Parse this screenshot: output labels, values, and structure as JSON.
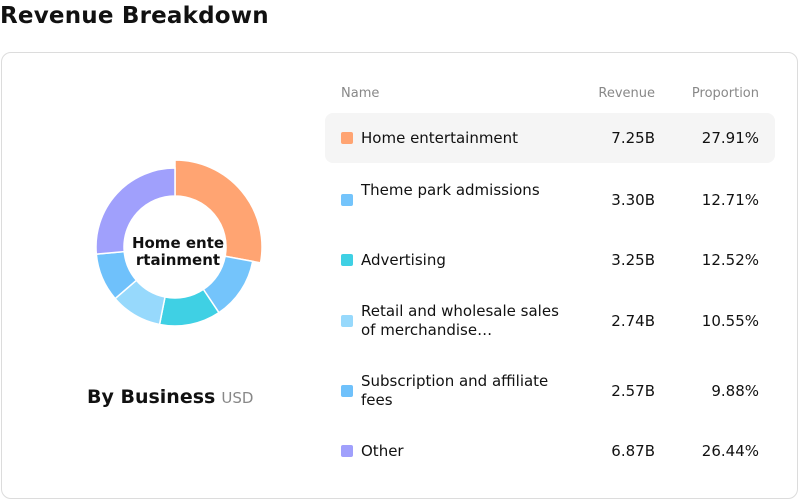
{
  "page": {
    "title": "Revenue Breakdown"
  },
  "chart_data": {
    "type": "pie",
    "title": "By Business",
    "unit": "USD",
    "center_label": "Home entertainment",
    "columns": {
      "name": "Name",
      "revenue": "Revenue",
      "proportion": "Proportion"
    },
    "categories": [
      "Home entertainment",
      "Theme park admissions",
      "Advertising",
      "Retail and wholesale sales of merchandise…",
      "Subscription and affiliate fees",
      "Other"
    ],
    "revenue_labels": [
      "7.25B",
      "3.30B",
      "3.25B",
      "2.74B",
      "2.57B",
      "6.87B"
    ],
    "proportion_labels": [
      "27.91%",
      "12.71%",
      "12.52%",
      "10.55%",
      "9.88%",
      "26.44%"
    ],
    "values": [
      27.91,
      12.71,
      12.52,
      10.55,
      9.88,
      26.44
    ],
    "colors": [
      "#ffa472",
      "#74c4fb",
      "#3fd0e4",
      "#97d9fc",
      "#6fc1fb",
      "#a0a0fc"
    ],
    "highlighted_index": 0
  }
}
